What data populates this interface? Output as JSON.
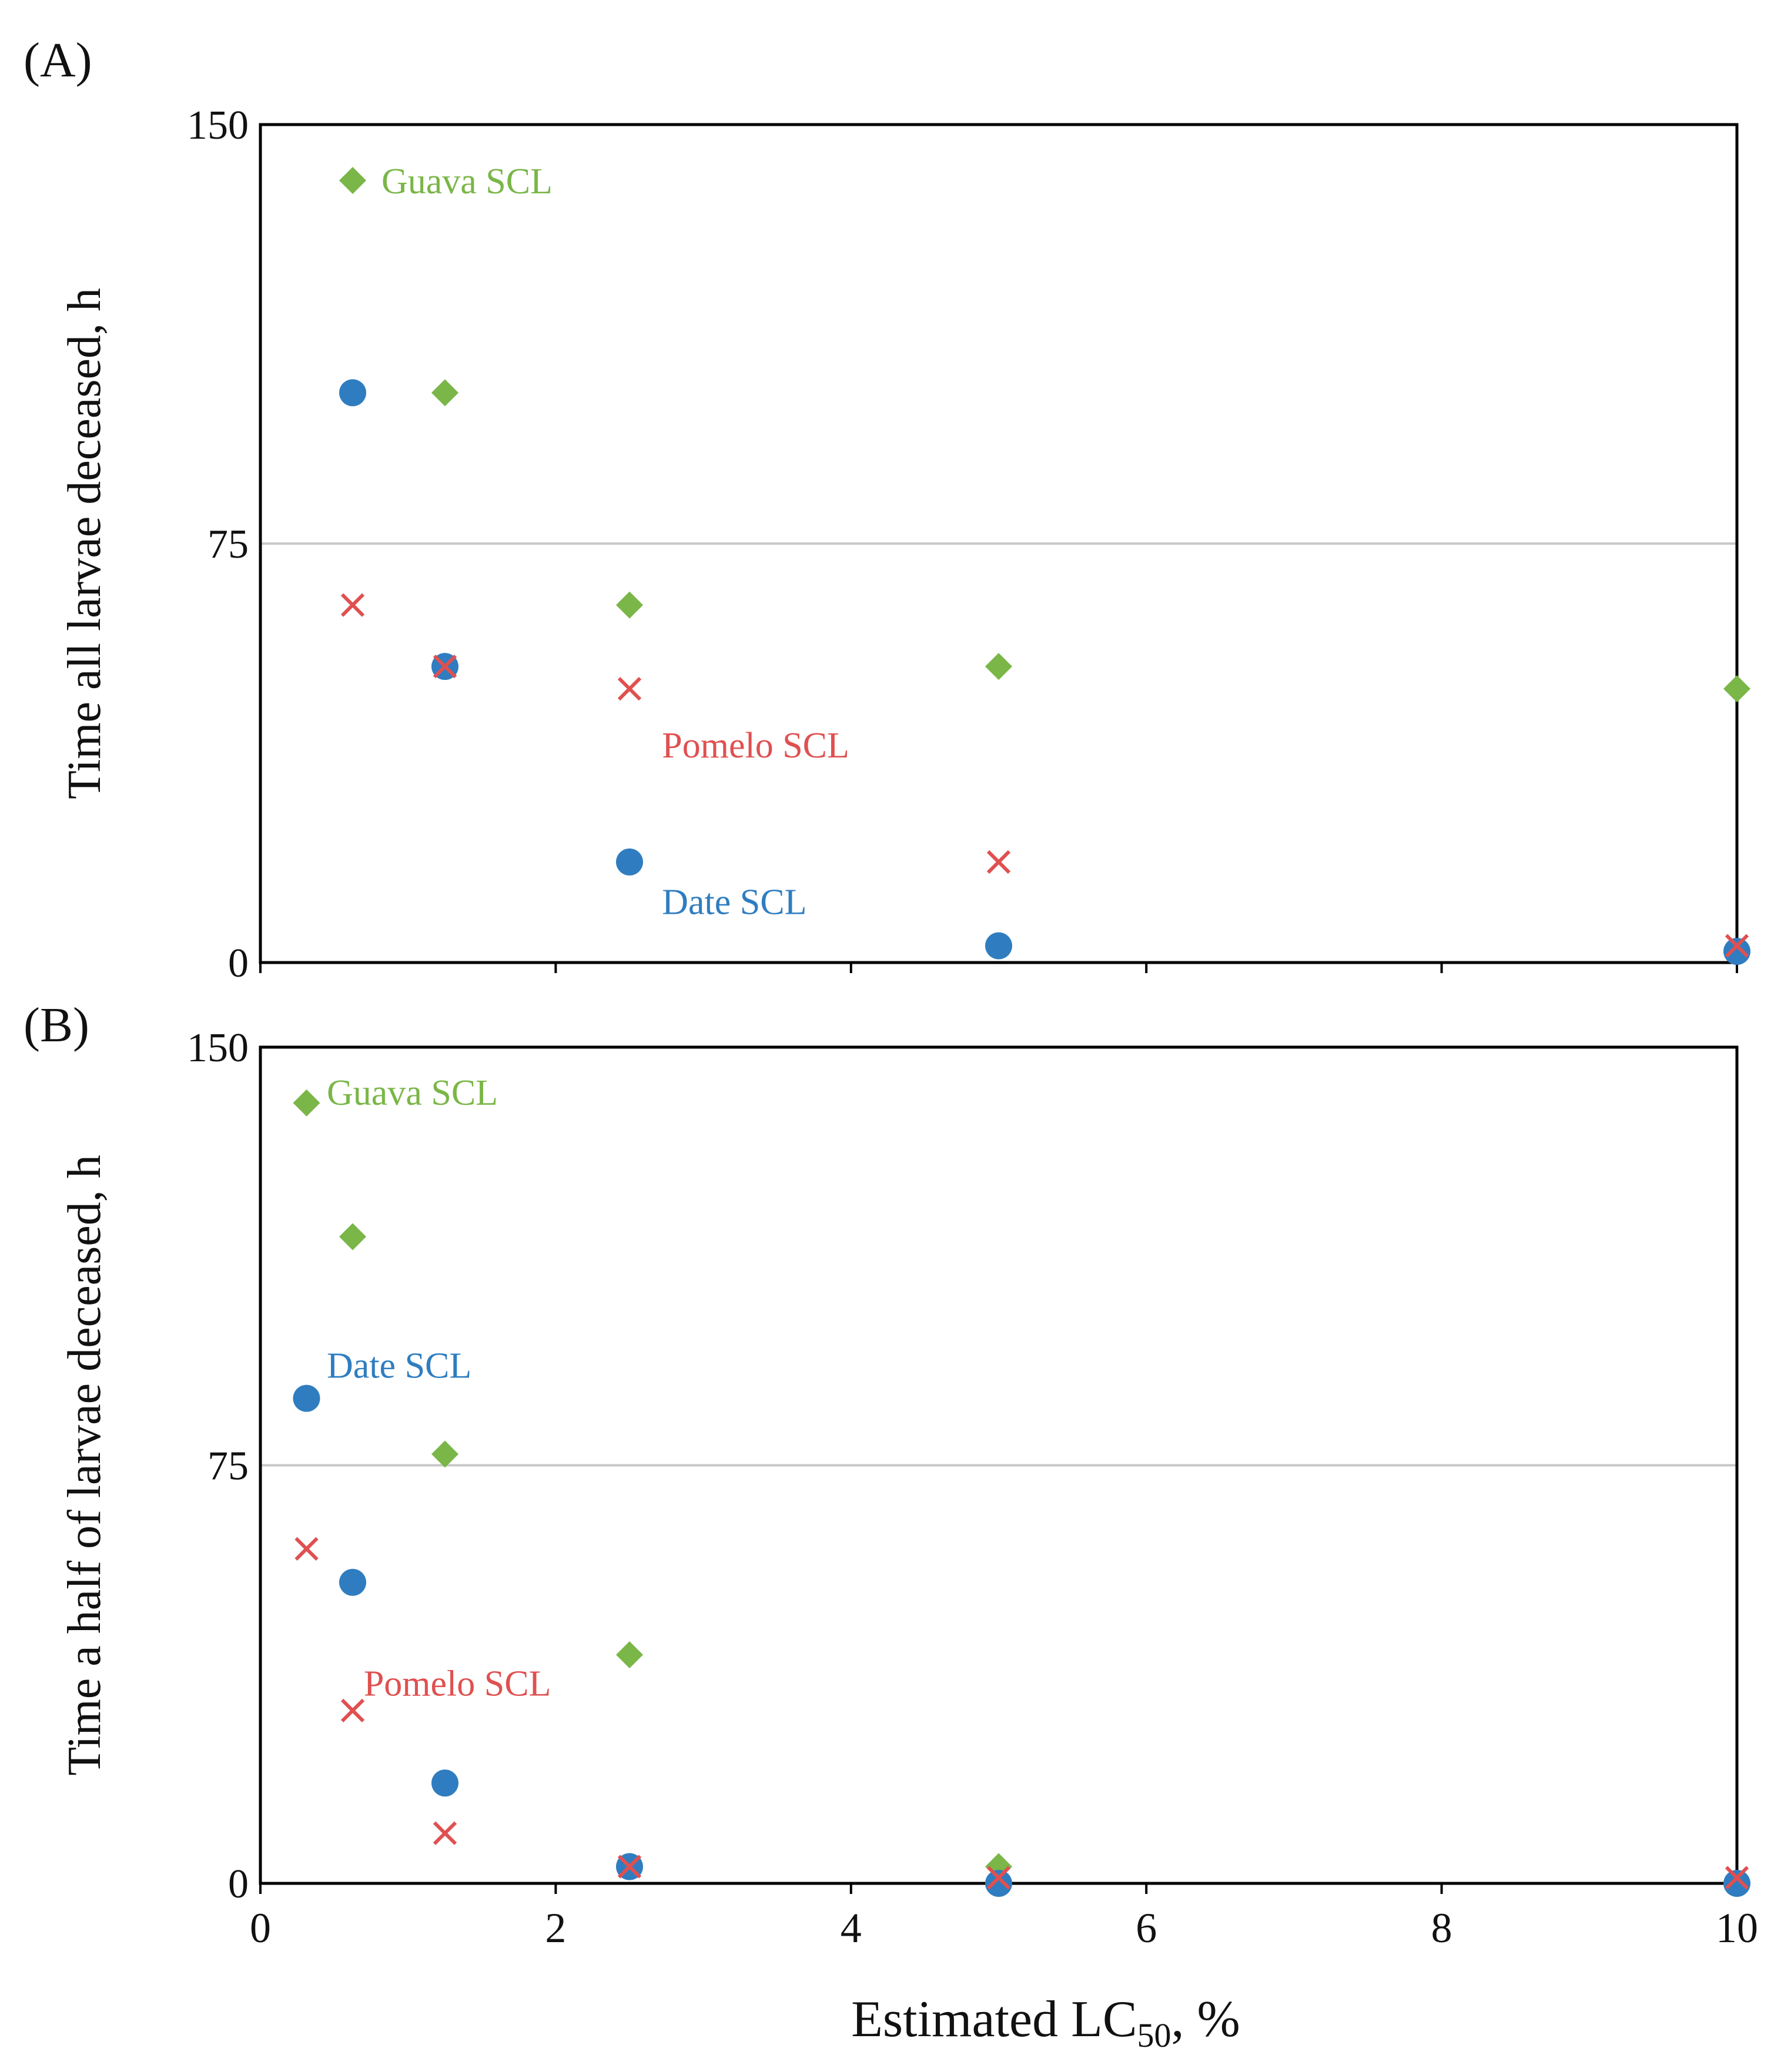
{
  "chart_data": [
    {
      "type": "scatter",
      "panel_label": "(A)",
      "title": "",
      "xlabel": "",
      "ylabel": "Time all larvae deceased,  h",
      "xlim": [
        0,
        10
      ],
      "ylim": [
        0,
        150
      ],
      "y_ticks": [
        "0",
        "75",
        "150"
      ],
      "x_ticks": [
        "0",
        "2",
        "4",
        "6",
        "8",
        "10"
      ],
      "show_x_tick_labels": false,
      "gridlines_y": [
        75
      ],
      "series": [
        {
          "name": "Guava SCL",
          "marker": "diamond",
          "color": "#7ab648",
          "x": [
            0.625,
            1.25,
            2.5,
            5,
            10
          ],
          "y": [
            140,
            102,
            64,
            53,
            49
          ]
        },
        {
          "name": "Date SCL",
          "marker": "circle",
          "color": "#2f7dc0",
          "x": [
            0.625,
            1.25,
            2.5,
            5,
            10
          ],
          "y": [
            102,
            53,
            18,
            3,
            2
          ]
        },
        {
          "name": "Pomelo SCL",
          "marker": "x",
          "color": "#e05050",
          "x": [
            0.625,
            1.25,
            2.5,
            5,
            10
          ],
          "y": [
            64,
            53,
            49,
            18,
            3
          ]
        }
      ],
      "annotations": [
        {
          "text": "Guava SCL",
          "x": 0.82,
          "y": 140,
          "color": "#7ab648"
        },
        {
          "text": "Pomelo SCL",
          "x": 2.72,
          "y": 39,
          "color": "#e05050"
        },
        {
          "text": "Date SCL",
          "x": 2.72,
          "y": 11,
          "color": "#2f7dc0"
        }
      ]
    },
    {
      "type": "scatter",
      "panel_label": "(B)",
      "title": "",
      "xlabel": "Estimated LC",
      "xlabel_sub": "50",
      "xlabel_suffix": ", %",
      "ylabel": "Time a half of larvae deceased,  h",
      "xlim": [
        0,
        10
      ],
      "ylim": [
        0,
        150
      ],
      "y_ticks": [
        "0",
        "75",
        "150"
      ],
      "x_ticks": [
        "0",
        "2",
        "4",
        "6",
        "8",
        "10"
      ],
      "show_x_tick_labels": true,
      "gridlines_y": [
        75
      ],
      "series": [
        {
          "name": "Guava SCL",
          "marker": "diamond",
          "color": "#7ab648",
          "x": [
            0.3125,
            0.625,
            1.25,
            2.5,
            5,
            10
          ],
          "y": [
            140,
            116,
            77,
            41,
            3,
            0
          ]
        },
        {
          "name": "Date SCL",
          "marker": "circle",
          "color": "#2f7dc0",
          "x": [
            0.3125,
            0.625,
            1.25,
            2.5,
            5,
            10
          ],
          "y": [
            87,
            54,
            18,
            3,
            0,
            0
          ]
        },
        {
          "name": "Pomelo SCL",
          "marker": "x",
          "color": "#e05050",
          "x": [
            0.3125,
            0.625,
            1.25,
            2.5,
            5,
            10
          ],
          "y": [
            60,
            31,
            9,
            3,
            1,
            1
          ]
        }
      ],
      "annotations": [
        {
          "text": "Guava SCL",
          "x": 0.45,
          "y": 142,
          "color": "#7ab648"
        },
        {
          "text": "Date SCL",
          "x": 0.45,
          "y": 93,
          "color": "#2f7dc0"
        },
        {
          "text": "Pomelo SCL",
          "x": 0.7,
          "y": 36,
          "color": "#e05050"
        }
      ]
    }
  ]
}
